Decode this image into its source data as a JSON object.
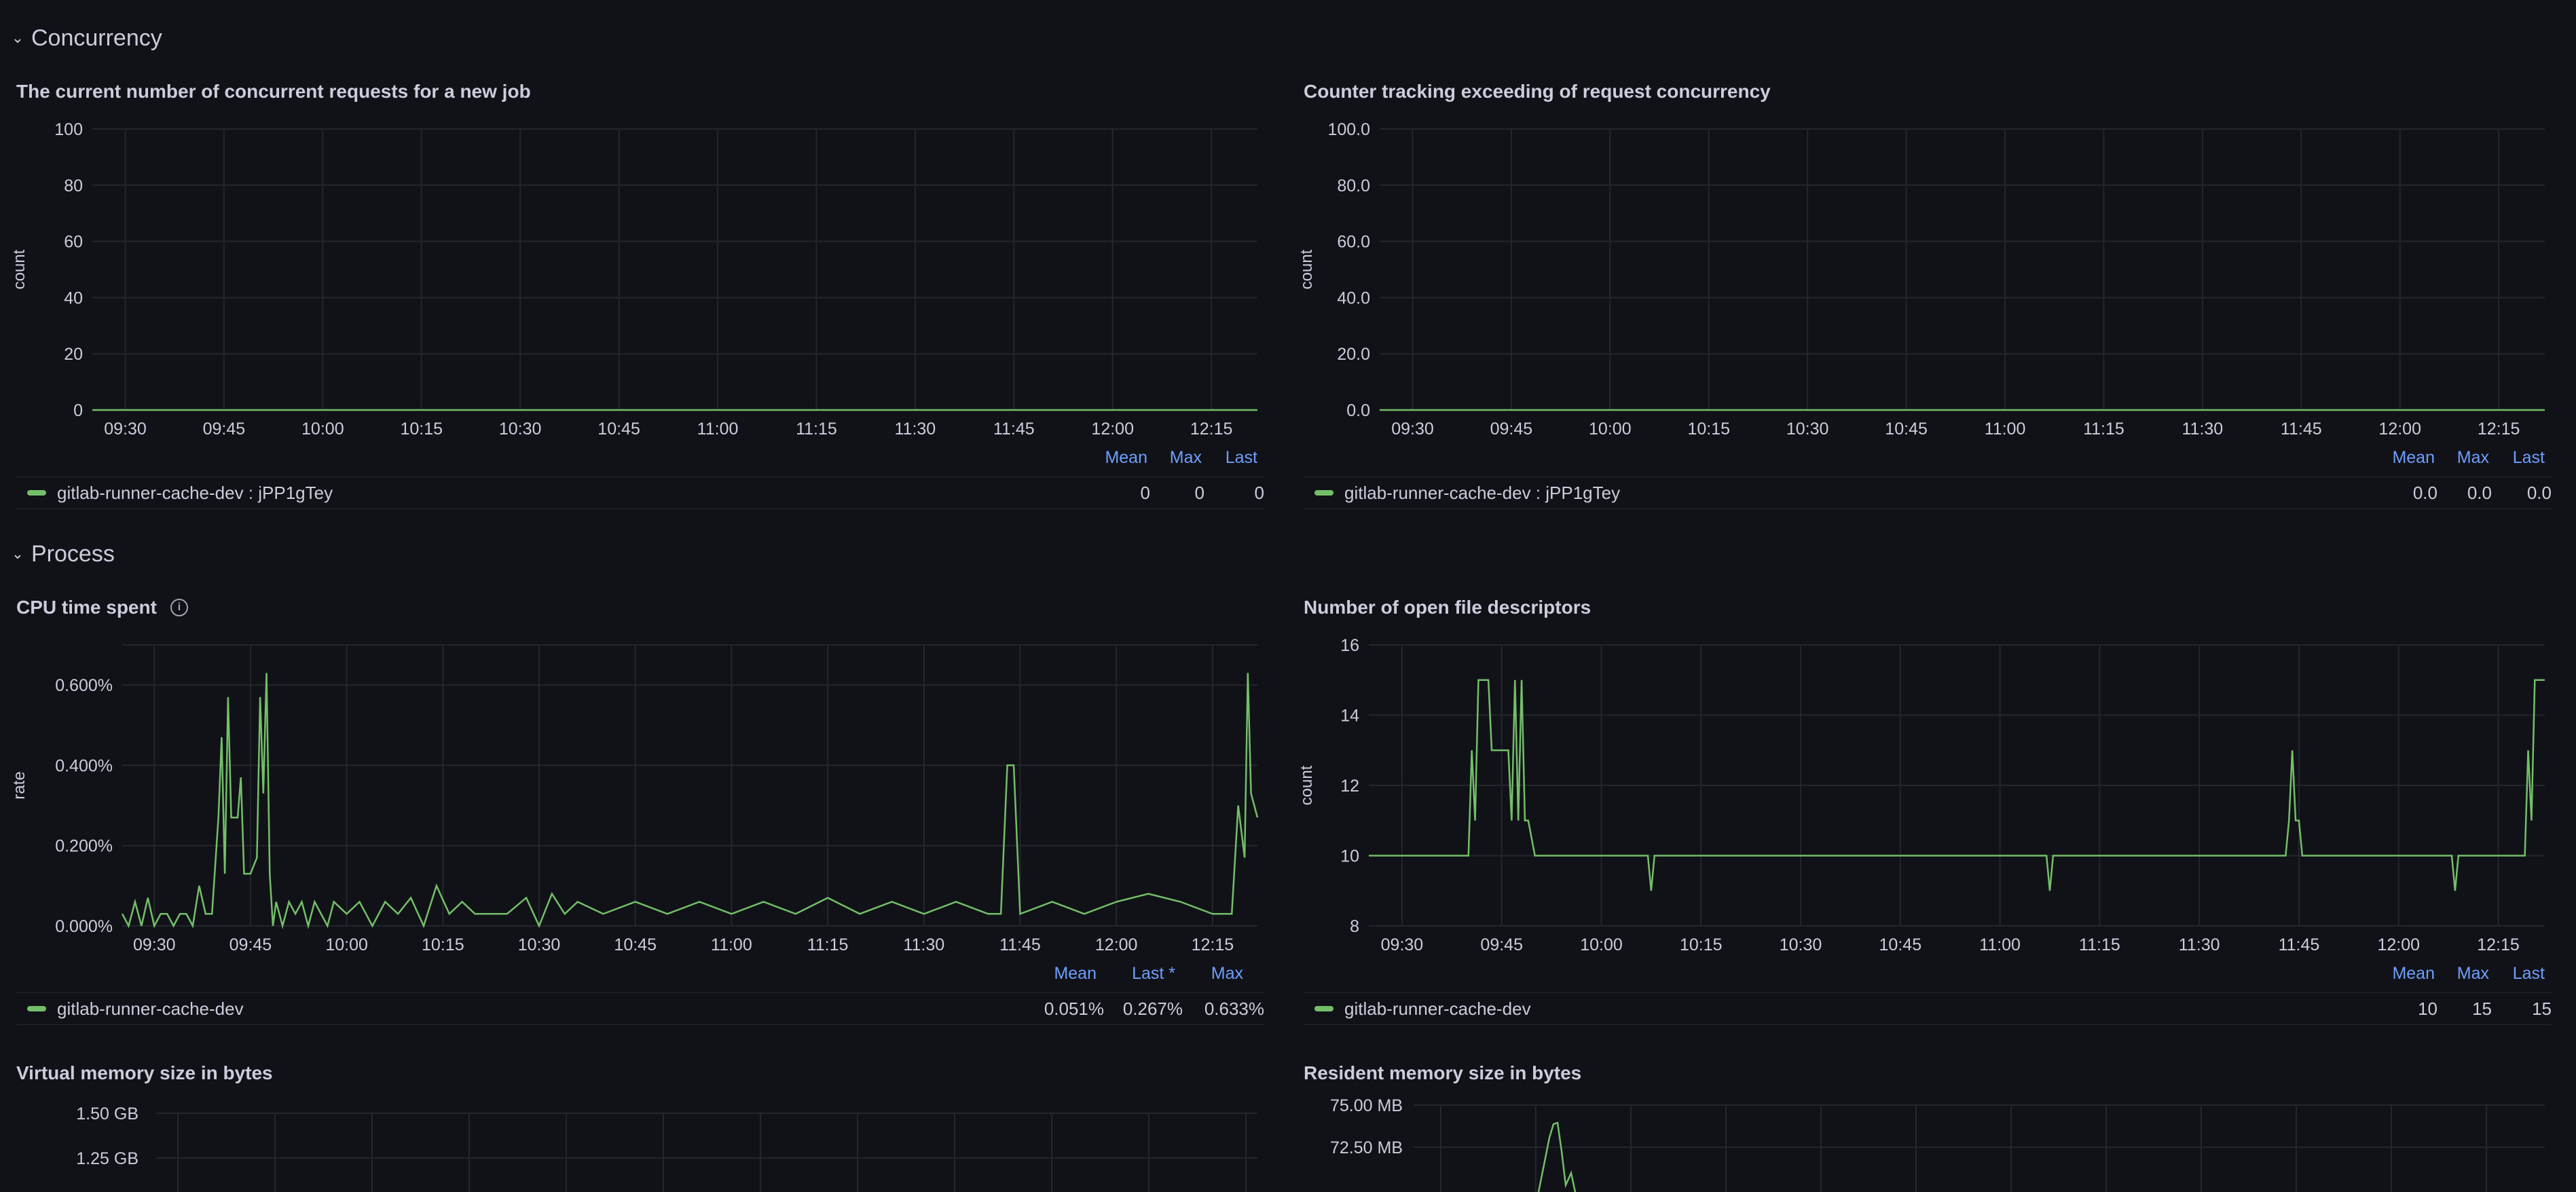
{
  "rows": [
    {
      "title": "Concurrency"
    },
    {
      "title": "Process"
    }
  ],
  "panels": {
    "concurrent": {
      "title": "The current number of concurrent requests for a new job",
      "ylabel": "count",
      "yticks": [
        "100",
        "80",
        "60",
        "40",
        "20",
        "0"
      ],
      "xticks": [
        "09:30",
        "09:45",
        "10:00",
        "10:15",
        "10:30",
        "10:45",
        "11:00",
        "11:15",
        "11:30",
        "11:45",
        "12:00",
        "12:15"
      ],
      "legend_headers": [
        "Mean",
        "Max",
        "Last"
      ],
      "series_name": "gitlab-runner-cache-dev : jPP1gTey",
      "series_values": [
        "0",
        "0",
        "0"
      ]
    },
    "exceeding": {
      "title": "Counter tracking exceeding of request concurrency",
      "ylabel": "count",
      "yticks": [
        "100.0",
        "80.0",
        "60.0",
        "40.0",
        "20.0",
        "0.0"
      ],
      "xticks": [
        "09:30",
        "09:45",
        "10:00",
        "10:15",
        "10:30",
        "10:45",
        "11:00",
        "11:15",
        "11:30",
        "11:45",
        "12:00",
        "12:15"
      ],
      "legend_headers": [
        "Mean",
        "Max",
        "Last"
      ],
      "series_name": "gitlab-runner-cache-dev : jPP1gTey",
      "series_values": [
        "0.0",
        "0.0",
        "0.0"
      ]
    },
    "cpu": {
      "title": "CPU time spent",
      "ylabel": "rate",
      "yticks": [
        "0.600%",
        "0.400%",
        "0.200%",
        "0.000%"
      ],
      "xticks": [
        "09:30",
        "09:45",
        "10:00",
        "10:15",
        "10:30",
        "10:45",
        "11:00",
        "11:15",
        "11:30",
        "11:45",
        "12:00",
        "12:15"
      ],
      "legend_headers": [
        "Mean",
        "Last *",
        "Max"
      ],
      "series_name": "gitlab-runner-cache-dev",
      "series_values": [
        "0.051%",
        "0.267%",
        "0.633%"
      ]
    },
    "fds": {
      "title": "Number of open file descriptors",
      "ylabel": "count",
      "yticks": [
        "16",
        "14",
        "12",
        "10",
        "8"
      ],
      "xticks": [
        "09:30",
        "09:45",
        "10:00",
        "10:15",
        "10:30",
        "10:45",
        "11:00",
        "11:15",
        "11:30",
        "11:45",
        "12:00",
        "12:15"
      ],
      "legend_headers": [
        "Mean",
        "Max",
        "Last"
      ],
      "series_name": "gitlab-runner-cache-dev",
      "series_values": [
        "10",
        "15",
        "15"
      ]
    },
    "vmem": {
      "title": "Virtual memory size in bytes",
      "yticks": [
        "1.50 GB",
        "1.25 GB"
      ]
    },
    "rmem": {
      "title": "Resident memory size in bytes",
      "yticks": [
        "75.00 MB",
        "72.50 MB"
      ]
    }
  },
  "colors": {
    "series": "#73bf69",
    "grid": "#24262d",
    "axis_text": "#ccccdc",
    "legend_header": "#6e9fff",
    "background": "#111217"
  },
  "chart_data": [
    {
      "type": "line",
      "title": "The current number of concurrent requests for a new job",
      "ylabel": "count",
      "ylim": [
        0,
        100
      ],
      "x": [
        "09:30",
        "09:45",
        "10:00",
        "10:15",
        "10:30",
        "10:45",
        "11:00",
        "11:15",
        "11:30",
        "11:45",
        "12:00",
        "12:15"
      ],
      "series": [
        {
          "name": "gitlab-runner-cache-dev : jPP1gTey",
          "values": [
            0,
            0,
            0,
            0,
            0,
            0,
            0,
            0,
            0,
            0,
            0,
            0
          ]
        }
      ]
    },
    {
      "type": "line",
      "title": "Counter tracking exceeding of request concurrency",
      "ylabel": "count",
      "ylim": [
        0,
        100
      ],
      "x": [
        "09:30",
        "09:45",
        "10:00",
        "10:15",
        "10:30",
        "10:45",
        "11:00",
        "11:15",
        "11:30",
        "11:45",
        "12:00",
        "12:15"
      ],
      "series": [
        {
          "name": "gitlab-runner-cache-dev : jPP1gTey",
          "values": [
            0,
            0,
            0,
            0,
            0,
            0,
            0,
            0,
            0,
            0,
            0,
            0
          ]
        }
      ]
    },
    {
      "type": "line",
      "title": "CPU time spent",
      "ylabel": "rate",
      "ylim": [
        0,
        0.7
      ],
      "x_range": [
        "09:25",
        "12:22"
      ],
      "series": [
        {
          "name": "gitlab-runner-cache-dev",
          "points": [
            [
              "09:25",
              0.03
            ],
            [
              "09:26",
              0.0
            ],
            [
              "09:27",
              0.06
            ],
            [
              "09:28",
              0.0
            ],
            [
              "09:29",
              0.07
            ],
            [
              "09:30",
              0.0
            ],
            [
              "09:31",
              0.03
            ],
            [
              "09:32",
              0.03
            ],
            [
              "09:33",
              0.0
            ],
            [
              "09:34",
              0.03
            ],
            [
              "09:35",
              0.03
            ],
            [
              "09:36",
              0.0
            ],
            [
              "09:37",
              0.1
            ],
            [
              "09:38",
              0.03
            ],
            [
              "09:39",
              0.03
            ],
            [
              "09:40",
              0.27
            ],
            [
              "09:40.5",
              0.47
            ],
            [
              "09:41",
              0.13
            ],
            [
              "09:41.5",
              0.57
            ],
            [
              "09:42",
              0.27
            ],
            [
              "09:43",
              0.27
            ],
            [
              "09:43.5",
              0.37
            ],
            [
              "09:44",
              0.13
            ],
            [
              "09:45",
              0.13
            ],
            [
              "09:46",
              0.17
            ],
            [
              "09:46.5",
              0.57
            ],
            [
              "09:47",
              0.33
            ],
            [
              "09:47.5",
              0.63
            ],
            [
              "09:48",
              0.13
            ],
            [
              "09:48.5",
              0.0
            ],
            [
              "09:49",
              0.06
            ],
            [
              "09:50",
              0.0
            ],
            [
              "09:51",
              0.06
            ],
            [
              "09:52",
              0.03
            ],
            [
              "09:53",
              0.06
            ],
            [
              "09:54",
              0.0
            ],
            [
              "09:55",
              0.06
            ],
            [
              "09:56",
              0.03
            ],
            [
              "09:57",
              0.0
            ],
            [
              "09:58",
              0.06
            ],
            [
              "10:00",
              0.03
            ],
            [
              "10:02",
              0.06
            ],
            [
              "10:04",
              0.0
            ],
            [
              "10:06",
              0.06
            ],
            [
              "10:08",
              0.03
            ],
            [
              "10:10",
              0.07
            ],
            [
              "10:12",
              0.0
            ],
            [
              "10:14",
              0.1
            ],
            [
              "10:16",
              0.03
            ],
            [
              "10:18",
              0.06
            ],
            [
              "10:20",
              0.03
            ],
            [
              "10:25",
              0.03
            ],
            [
              "10:28",
              0.07
            ],
            [
              "10:30",
              0.0
            ],
            [
              "10:32",
              0.08
            ],
            [
              "10:34",
              0.03
            ],
            [
              "10:36",
              0.06
            ],
            [
              "10:40",
              0.03
            ],
            [
              "10:45",
              0.06
            ],
            [
              "10:50",
              0.03
            ],
            [
              "10:55",
              0.06
            ],
            [
              "11:00",
              0.03
            ],
            [
              "11:05",
              0.06
            ],
            [
              "11:10",
              0.03
            ],
            [
              "11:15",
              0.07
            ],
            [
              "11:20",
              0.03
            ],
            [
              "11:25",
              0.06
            ],
            [
              "11:30",
              0.03
            ],
            [
              "11:35",
              0.06
            ],
            [
              "11:40",
              0.03
            ],
            [
              "11:42",
              0.03
            ],
            [
              "11:43",
              0.4
            ],
            [
              "11:44",
              0.4
            ],
            [
              "11:45",
              0.03
            ],
            [
              "11:50",
              0.06
            ],
            [
              "11:55",
              0.03
            ],
            [
              "12:00",
              0.06
            ],
            [
              "12:05",
              0.08
            ],
            [
              "12:10",
              0.06
            ],
            [
              "12:15",
              0.03
            ],
            [
              "12:18",
              0.03
            ],
            [
              "12:19",
              0.3
            ],
            [
              "12:20",
              0.17
            ],
            [
              "12:20.5",
              0.63
            ],
            [
              "12:21",
              0.33
            ],
            [
              "12:22",
              0.27
            ]
          ]
        }
      ]
    },
    {
      "type": "line",
      "title": "Number of open file descriptors",
      "ylabel": "count",
      "ylim": [
        8,
        16
      ],
      "x_range": [
        "09:25",
        "12:22"
      ],
      "series": [
        {
          "name": "gitlab-runner-cache-dev",
          "points": [
            [
              "09:25",
              10
            ],
            [
              "09:40",
              10
            ],
            [
              "09:40.5",
              13
            ],
            [
              "09:41",
              11
            ],
            [
              "09:41.5",
              15
            ],
            [
              "09:43",
              15
            ],
            [
              "09:43.5",
              13
            ],
            [
              "09:46",
              13
            ],
            [
              "09:46.5",
              11
            ],
            [
              "09:47",
              15
            ],
            [
              "09:47.5",
              11
            ],
            [
              "09:48",
              15
            ],
            [
              "09:48.5",
              11
            ],
            [
              "09:49",
              11
            ],
            [
              "09:50",
              10
            ],
            [
              "10:07",
              10
            ],
            [
              "10:07.5",
              9
            ],
            [
              "10:08",
              10
            ],
            [
              "11:07",
              10
            ],
            [
              "11:07.5",
              9
            ],
            [
              "11:08",
              10
            ],
            [
              "11:43",
              10
            ],
            [
              "11:43.5",
              11
            ],
            [
              "11:44",
              13
            ],
            [
              "11:44.5",
              11
            ],
            [
              "11:45",
              11
            ],
            [
              "11:45.5",
              10
            ],
            [
              "12:08",
              10
            ],
            [
              "12:08.5",
              9
            ],
            [
              "12:09",
              10
            ],
            [
              "12:19",
              10
            ],
            [
              "12:19.5",
              13
            ],
            [
              "12:20",
              11
            ],
            [
              "12:20.5",
              15
            ],
            [
              "12:22",
              15
            ]
          ]
        }
      ]
    },
    {
      "type": "line",
      "title": "Virtual memory size in bytes",
      "yticks": [
        "1.50 GB",
        "1.25 GB"
      ],
      "series": []
    },
    {
      "type": "line",
      "title": "Resident memory size in bytes",
      "yticks": [
        "75.00 MB",
        "72.50 MB"
      ],
      "series": []
    }
  ]
}
